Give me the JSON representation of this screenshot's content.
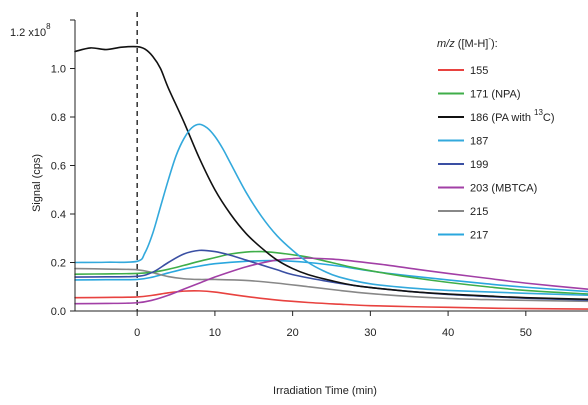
{
  "chart_data": {
    "type": "line",
    "xlabel": "Irradiation Time (min)",
    "ylabel": "Signal (cps)",
    "xlim": [
      -8,
      58
    ],
    "ylim": [
      0,
      1.2
    ],
    "y_scale_label_base": "1.2 x10",
    "y_scale_label_exp": "8",
    "x_ticks": [
      0,
      10,
      20,
      30,
      40,
      50
    ],
    "x_tick_labels": [
      "0",
      "10",
      "20",
      "30",
      "40",
      "50"
    ],
    "y_ticks": [
      0.0,
      0.2,
      0.4,
      0.6,
      0.8,
      1.0
    ],
    "y_tick_labels": [
      "0.0",
      "0.2",
      "0.4",
      "0.6",
      "0.8",
      "1.0"
    ],
    "vertical_marker_x": 0,
    "grid": false,
    "legend_position": "top-right",
    "legend_title": {
      "m": "m",
      "slash": "/",
      "z": "z",
      "rest": " ([M-H]",
      "sup": "-",
      "close": "):"
    },
    "series": [
      {
        "name": "155",
        "color": "#e8423f",
        "x": [
          -8,
          -4,
          0,
          2,
          4,
          6,
          8,
          10,
          14,
          18,
          22,
          26,
          30,
          35,
          40,
          45,
          50,
          58
        ],
        "y": [
          0.055,
          0.056,
          0.058,
          0.065,
          0.075,
          0.082,
          0.083,
          0.078,
          0.06,
          0.045,
          0.035,
          0.028,
          0.022,
          0.018,
          0.015,
          0.012,
          0.01,
          0.008
        ]
      },
      {
        "name": "171 (NPA)",
        "name_base": "171 (NPA)",
        "color": "#3fae49",
        "x": [
          -8,
          -4,
          0,
          2,
          4,
          6,
          8,
          10,
          12,
          14,
          16,
          18,
          20,
          22,
          25,
          28,
          32,
          36,
          40,
          45,
          50,
          58
        ],
        "y": [
          0.152,
          0.153,
          0.155,
          0.16,
          0.172,
          0.188,
          0.205,
          0.22,
          0.235,
          0.243,
          0.245,
          0.24,
          0.232,
          0.222,
          0.2,
          0.178,
          0.155,
          0.135,
          0.118,
          0.1,
          0.085,
          0.07
        ]
      },
      {
        "name": "186 (PA with 13C)",
        "name_base": "186 (PA with ",
        "name_sup": "13",
        "name_tail": "C)",
        "color": "#111111",
        "x": [
          -8,
          -6,
          -4,
          -2,
          0,
          1,
          2,
          3,
          4,
          6,
          8,
          10,
          12,
          14,
          16,
          18,
          20,
          22,
          25,
          28,
          32,
          36,
          40,
          45,
          50,
          58
        ],
        "y": [
          1.07,
          1.085,
          1.078,
          1.088,
          1.09,
          1.08,
          1.05,
          1.0,
          0.92,
          0.78,
          0.63,
          0.5,
          0.4,
          0.32,
          0.26,
          0.21,
          0.175,
          0.15,
          0.125,
          0.105,
          0.09,
          0.078,
          0.07,
          0.062,
          0.055,
          0.048
        ]
      },
      {
        "name": "187",
        "color": "#33a9dc",
        "x": [
          -8,
          -4,
          0,
          1,
          2,
          3,
          4,
          5,
          6,
          7,
          8,
          9,
          10,
          11,
          12,
          14,
          16,
          18,
          20,
          22,
          24,
          26,
          30,
          35,
          40,
          50,
          58
        ],
        "y": [
          0.2,
          0.201,
          0.205,
          0.24,
          0.32,
          0.43,
          0.54,
          0.64,
          0.71,
          0.755,
          0.77,
          0.755,
          0.72,
          0.67,
          0.61,
          0.49,
          0.39,
          0.31,
          0.25,
          0.2,
          0.165,
          0.14,
          0.112,
          0.095,
          0.085,
          0.073,
          0.065
        ]
      },
      {
        "name": "199",
        "color": "#3a4fa3",
        "x": [
          -8,
          -4,
          0,
          2,
          4,
          6,
          8,
          10,
          12,
          14,
          16,
          18,
          20,
          24,
          28,
          32,
          36,
          40,
          45,
          50,
          58
        ],
        "y": [
          0.14,
          0.141,
          0.143,
          0.16,
          0.2,
          0.235,
          0.25,
          0.245,
          0.23,
          0.21,
          0.19,
          0.17,
          0.15,
          0.125,
          0.105,
          0.09,
          0.078,
          0.068,
          0.06,
          0.053,
          0.045
        ]
      },
      {
        "name": "203 (MBTCA)",
        "color": "#a23fa6",
        "x": [
          -8,
          -4,
          0,
          2,
          4,
          6,
          8,
          10,
          12,
          14,
          16,
          18,
          20,
          22,
          25,
          28,
          32,
          36,
          40,
          45,
          50,
          58
        ],
        "y": [
          0.03,
          0.031,
          0.034,
          0.045,
          0.065,
          0.09,
          0.115,
          0.14,
          0.162,
          0.182,
          0.198,
          0.21,
          0.216,
          0.218,
          0.214,
          0.205,
          0.19,
          0.172,
          0.155,
          0.135,
          0.115,
          0.09
        ]
      },
      {
        "name": "215",
        "color": "#888888",
        "x": [
          -8,
          -4,
          0,
          2,
          4,
          6,
          8,
          10,
          14,
          18,
          22,
          26,
          30,
          35,
          40,
          45,
          50,
          58
        ],
        "y": [
          0.175,
          0.173,
          0.17,
          0.158,
          0.142,
          0.133,
          0.13,
          0.13,
          0.126,
          0.115,
          0.1,
          0.085,
          0.072,
          0.06,
          0.052,
          0.047,
          0.044,
          0.04
        ]
      },
      {
        "name": "217",
        "color": "#2aa7de",
        "x": [
          -8,
          -4,
          0,
          2,
          4,
          6,
          8,
          10,
          14,
          18,
          22,
          26,
          30,
          35,
          40,
          45,
          50,
          58
        ],
        "y": [
          0.128,
          0.129,
          0.13,
          0.14,
          0.157,
          0.173,
          0.185,
          0.195,
          0.205,
          0.208,
          0.2,
          0.185,
          0.165,
          0.145,
          0.128,
          0.112,
          0.098,
          0.08
        ]
      }
    ]
  }
}
